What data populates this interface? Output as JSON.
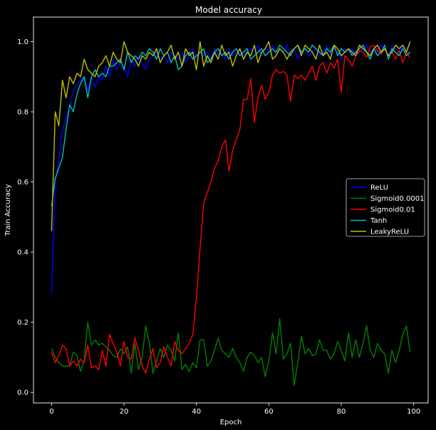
{
  "chart_data": {
    "type": "line",
    "title": "Model accuracy",
    "xlabel": "Epoch",
    "ylabel": "Train Accuracy",
    "xlim": [
      -5,
      104
    ],
    "ylim": [
      -0.03,
      1.07
    ],
    "xticks": [
      0,
      20,
      40,
      60,
      80,
      100
    ],
    "xtick_labels": [
      "0",
      "20",
      "40",
      "60",
      "80",
      "100"
    ],
    "yticks": [
      0.0,
      0.2,
      0.4,
      0.6,
      0.8,
      1.0
    ],
    "ytick_labels": [
      "0.0",
      "0.2",
      "0.4",
      "0.6",
      "0.8",
      "1.0"
    ],
    "grid": false,
    "legend_position": "center-right",
    "background": "#000000",
    "foreground": "#ffffff",
    "series": [
      {
        "name": "ReLU",
        "color": "#0000ff",
        "values": [
          0.28,
          0.6,
          0.66,
          0.75,
          0.78,
          0.82,
          0.86,
          0.88,
          0.89,
          0.9,
          0.86,
          0.9,
          0.87,
          0.9,
          0.89,
          0.93,
          0.9,
          0.95,
          0.92,
          0.94,
          0.93,
          0.9,
          0.95,
          0.93,
          0.96,
          0.94,
          0.92,
          0.95,
          0.96,
          0.97,
          0.95,
          0.96,
          0.94,
          0.97,
          0.96,
          0.95,
          0.97,
          0.94,
          0.96,
          0.98,
          0.95,
          0.97,
          0.96,
          0.97,
          0.95,
          0.98,
          0.96,
          0.97,
          0.95,
          0.98,
          0.96,
          0.97,
          0.98,
          0.96,
          0.97,
          0.98,
          0.97,
          0.99,
          0.96,
          0.98,
          0.97,
          0.99,
          0.96,
          0.98,
          0.97,
          0.99,
          0.96,
          0.98,
          0.95,
          0.97,
          0.98,
          0.96,
          0.97,
          0.98,
          0.96,
          0.97,
          0.99,
          0.96,
          0.98,
          0.97,
          0.95,
          0.98,
          0.97,
          0.98,
          0.96,
          0.97,
          0.98,
          0.99,
          0.97,
          0.98,
          0.97,
          0.99,
          0.98,
          0.96,
          0.99,
          0.98,
          0.97,
          0.99,
          0.98,
          0.99
        ]
      },
      {
        "name": "Sigmoid0.0001",
        "color": "#008000",
        "values": [
          0.125,
          0.1,
          0.085,
          0.075,
          0.075,
          0.075,
          0.115,
          0.105,
          0.06,
          0.09,
          0.2,
          0.135,
          0.15,
          0.135,
          0.14,
          0.13,
          0.12,
          0.105,
          0.1,
          0.125,
          0.11,
          0.13,
          0.055,
          0.14,
          0.065,
          0.1,
          0.19,
          0.14,
          0.055,
          0.09,
          0.125,
          0.1,
          0.135,
          0.12,
          0.09,
          0.17,
          0.065,
          0.08,
          0.06,
          0.085,
          0.07,
          0.15,
          0.15,
          0.075,
          0.09,
          0.12,
          0.155,
          0.12,
          0.11,
          0.1,
          0.125,
          0.1,
          0.085,
          0.06,
          0.1,
          0.115,
          0.105,
          0.085,
          0.1,
          0.045,
          0.09,
          0.17,
          0.11,
          0.21,
          0.095,
          0.11,
          0.14,
          0.02,
          0.085,
          0.16,
          0.11,
          0.125,
          0.105,
          0.11,
          0.15,
          0.12,
          0.12,
          0.095,
          0.11,
          0.145,
          0.12,
          0.09,
          0.17,
          0.1,
          0.15,
          0.1,
          0.14,
          0.19,
          0.12,
          0.1,
          0.14,
          0.12,
          0.11,
          0.055,
          0.12,
          0.085,
          0.12,
          0.165,
          0.19,
          0.115
        ]
      },
      {
        "name": "Sigmoid0.01",
        "color": "#ff0000",
        "values": [
          0.115,
          0.085,
          0.105,
          0.135,
          0.125,
          0.075,
          0.09,
          0.075,
          0.095,
          0.085,
          0.135,
          0.07,
          0.075,
          0.065,
          0.12,
          0.075,
          0.165,
          0.14,
          0.115,
          0.075,
          0.145,
          0.1,
          0.095,
          0.155,
          0.12,
          0.075,
          0.055,
          0.095,
          0.125,
          0.07,
          0.085,
          0.13,
          0.1,
          0.075,
          0.145,
          0.12,
          0.11,
          0.125,
          0.14,
          0.165,
          0.27,
          0.41,
          0.54,
          0.57,
          0.6,
          0.64,
          0.66,
          0.7,
          0.72,
          0.63,
          0.69,
          0.72,
          0.75,
          0.835,
          0.835,
          0.895,
          0.77,
          0.84,
          0.875,
          0.835,
          0.855,
          0.905,
          0.92,
          0.91,
          0.915,
          0.905,
          0.83,
          0.905,
          0.895,
          0.905,
          0.89,
          0.91,
          0.93,
          0.89,
          0.93,
          0.94,
          0.91,
          0.94,
          0.925,
          0.95,
          0.855,
          0.96,
          0.95,
          0.93,
          0.96,
          0.975,
          0.97,
          0.955,
          0.985,
          0.99,
          0.975,
          0.965,
          0.98,
          0.96,
          0.97,
          0.95,
          0.975,
          0.94,
          0.97,
          0.955
        ]
      },
      {
        "name": "Tanh",
        "color": "#00bfbf",
        "values": [
          0.53,
          0.61,
          0.64,
          0.67,
          0.75,
          0.82,
          0.8,
          0.85,
          0.88,
          0.9,
          0.84,
          0.9,
          0.92,
          0.9,
          0.91,
          0.9,
          0.93,
          0.93,
          0.94,
          0.95,
          0.92,
          0.97,
          0.94,
          0.96,
          0.95,
          0.97,
          0.96,
          0.98,
          0.97,
          0.95,
          0.98,
          0.96,
          0.97,
          0.94,
          0.96,
          0.92,
          0.93,
          0.96,
          0.97,
          0.95,
          0.96,
          0.97,
          0.98,
          0.94,
          0.95,
          0.97,
          0.98,
          0.96,
          0.97,
          0.95,
          0.97,
          0.98,
          0.96,
          0.97,
          0.98,
          0.95,
          0.96,
          0.97,
          0.98,
          0.96,
          0.97,
          0.98,
          0.97,
          0.99,
          0.98,
          0.97,
          0.96,
          0.98,
          0.99,
          0.97,
          0.98,
          0.97,
          0.99,
          0.98,
          0.97,
          0.96,
          0.98,
          0.97,
          0.99,
          0.96,
          0.98,
          0.97,
          0.98,
          0.96,
          0.97,
          0.98,
          0.99,
          0.97,
          0.95,
          0.98,
          0.96,
          0.97,
          0.99,
          0.95,
          0.98,
          0.97,
          0.96,
          0.98,
          0.96,
          0.97
        ]
      },
      {
        "name": "LeakyReLU",
        "color": "#bfbf00",
        "values": [
          0.46,
          0.8,
          0.76,
          0.89,
          0.84,
          0.9,
          0.88,
          0.91,
          0.9,
          0.95,
          0.92,
          0.91,
          0.9,
          0.93,
          0.94,
          0.96,
          0.93,
          0.97,
          0.95,
          0.94,
          1.0,
          0.97,
          0.96,
          0.95,
          0.93,
          0.96,
          0.95,
          0.97,
          0.96,
          0.98,
          0.94,
          0.96,
          0.97,
          0.99,
          0.95,
          0.97,
          0.93,
          0.98,
          0.96,
          0.97,
          0.92,
          1.0,
          0.93,
          0.96,
          0.94,
          0.97,
          0.95,
          0.99,
          0.96,
          0.97,
          0.93,
          0.96,
          0.98,
          0.95,
          0.97,
          0.96,
          0.99,
          0.94,
          0.97,
          0.98,
          1.0,
          0.95,
          0.96,
          0.98,
          0.97,
          0.95,
          0.97,
          0.98,
          0.99,
          0.96,
          0.99,
          0.98,
          0.97,
          0.95,
          0.99,
          0.96,
          0.97,
          0.95,
          0.99,
          0.98,
          0.96,
          0.97,
          0.98,
          0.97,
          0.96,
          0.99,
          0.98,
          0.97,
          0.96,
          0.98,
          0.99,
          0.97,
          0.98,
          0.96,
          0.97,
          0.99,
          0.98,
          0.99,
          0.97,
          1.0
        ]
      }
    ]
  }
}
